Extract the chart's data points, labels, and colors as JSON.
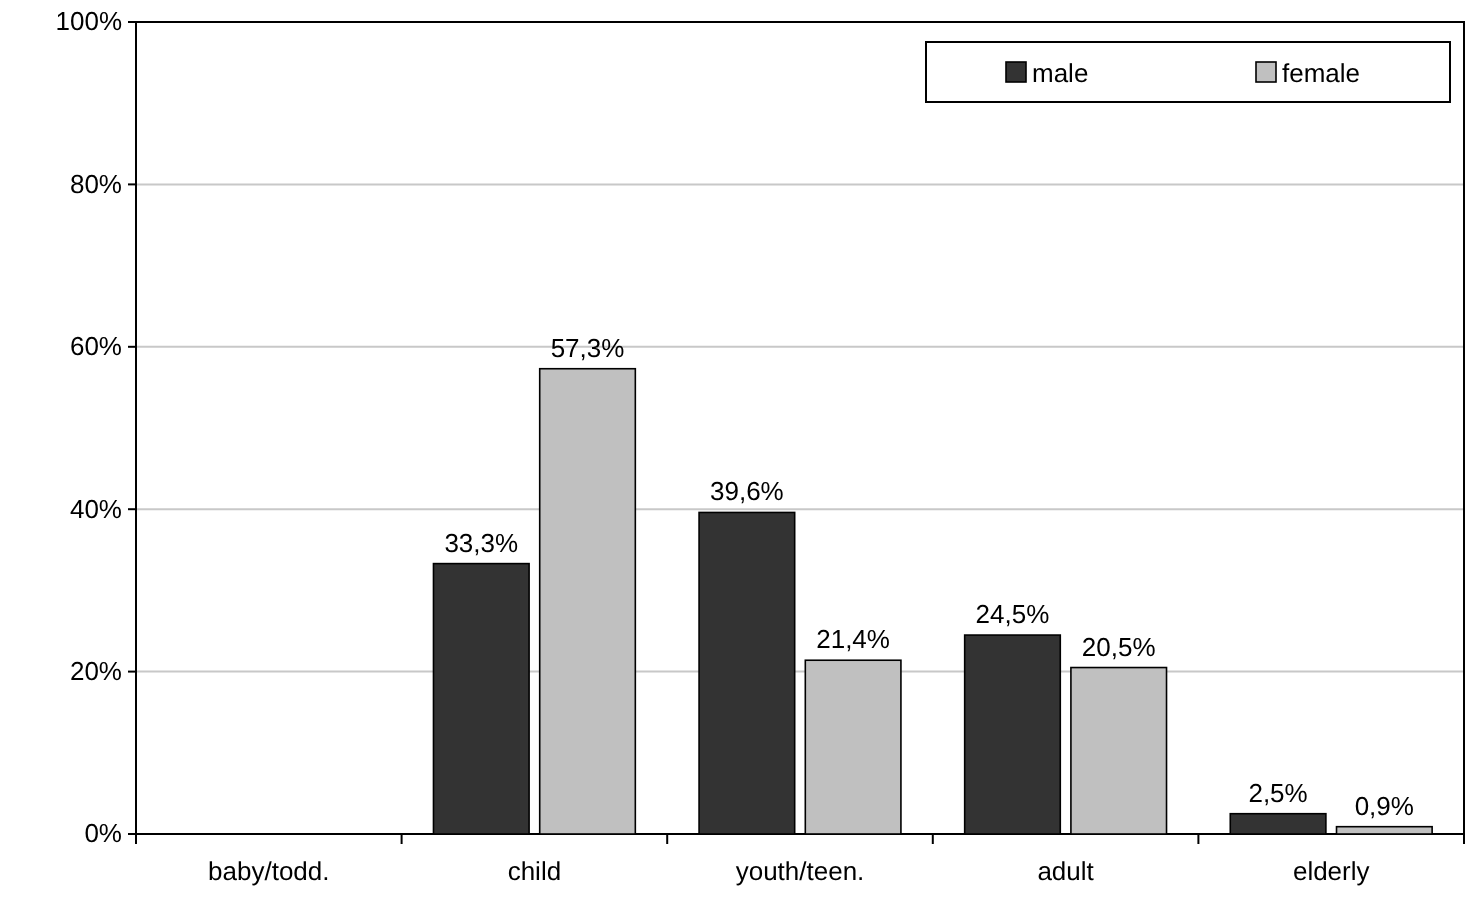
{
  "chart_data": {
    "type": "bar",
    "categories": [
      "baby/todd.",
      "child",
      "youth/teen.",
      "adult",
      "elderly"
    ],
    "series": [
      {
        "name": "male",
        "color": "#333333",
        "values": [
          null,
          33.3,
          39.6,
          24.5,
          2.5
        ],
        "value_labels": [
          null,
          "33,3%",
          "39,6%",
          "24,5%",
          "2,5%"
        ]
      },
      {
        "name": "female",
        "color": "#c0c0c0",
        "values": [
          null,
          57.3,
          21.4,
          20.5,
          0.9
        ],
        "value_labels": [
          null,
          "57,3%",
          "21,4%",
          "20,5%",
          "0,9%"
        ]
      }
    ],
    "ylim": [
      0,
      100
    ],
    "yticks": [
      {
        "value": 0,
        "label": "0%"
      },
      {
        "value": 20,
        "label": "20%"
      },
      {
        "value": 40,
        "label": "40%"
      },
      {
        "value": 60,
        "label": "60%"
      },
      {
        "value": 80,
        "label": "80%"
      },
      {
        "value": 100,
        "label": "100%"
      }
    ],
    "grid": "y",
    "legend": "top right"
  }
}
